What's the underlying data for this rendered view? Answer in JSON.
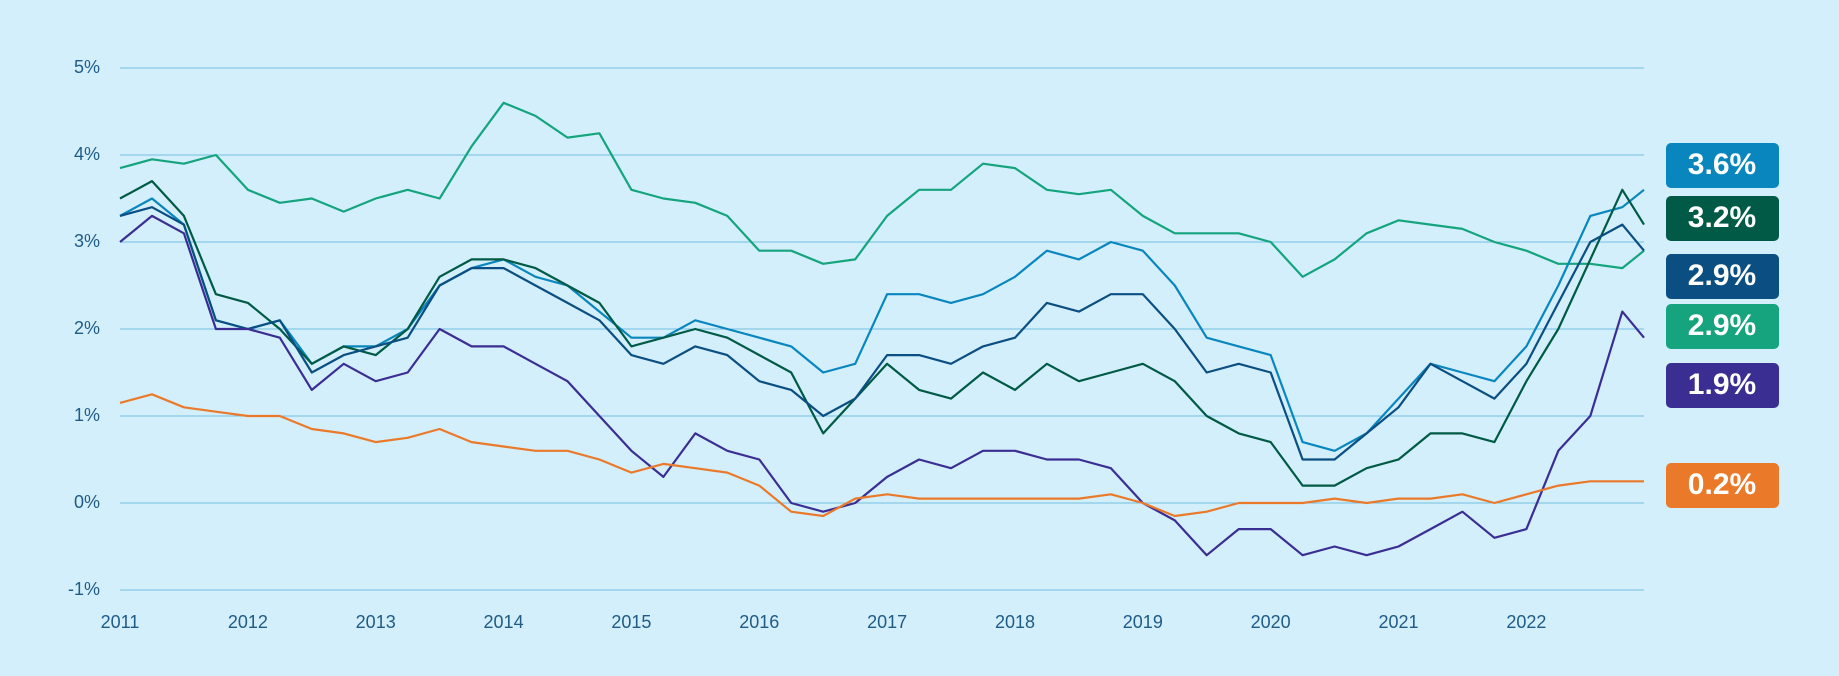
{
  "chart_data": {
    "type": "line",
    "x": [
      2011,
      2011.25,
      2011.5,
      2011.75,
      2012,
      2012.25,
      2012.5,
      2012.75,
      2013,
      2013.25,
      2013.5,
      2013.75,
      2014,
      2014.25,
      2014.5,
      2014.75,
      2015,
      2015.25,
      2015.5,
      2015.75,
      2016,
      2016.25,
      2016.5,
      2016.75,
      2017,
      2017.25,
      2017.5,
      2017.75,
      2018,
      2018.25,
      2018.5,
      2018.75,
      2019,
      2019.25,
      2019.5,
      2019.75,
      2020,
      2020.25,
      2020.5,
      2020.75,
      2021,
      2021.25,
      2021.5,
      2021.75,
      2022,
      2022.25,
      2022.5,
      2022.75,
      2022.92
    ],
    "series": [
      {
        "color": "#15a47e",
        "values": [
          3.85,
          3.95,
          3.9,
          4.0,
          3.6,
          3.45,
          3.5,
          3.35,
          3.5,
          3.6,
          3.5,
          4.1,
          4.6,
          4.45,
          4.2,
          4.25,
          3.6,
          3.5,
          3.45,
          3.3,
          2.9,
          2.9,
          2.75,
          2.8,
          3.3,
          3.6,
          3.6,
          3.9,
          3.85,
          3.6,
          3.55,
          3.6,
          3.3,
          3.1,
          3.1,
          3.1,
          3.0,
          2.6,
          2.8,
          3.1,
          3.25,
          3.2,
          3.15,
          3.0,
          2.9,
          2.75,
          2.75,
          2.7,
          2.9
        ],
        "value_labels": [
          null,
          null,
          null,
          null,
          null,
          null,
          null,
          null,
          null,
          null,
          null,
          null,
          null,
          null,
          null,
          null,
          null,
          null,
          null,
          null,
          null,
          null,
          null,
          null,
          null,
          null,
          null,
          null,
          null,
          null,
          null,
          null,
          null,
          null,
          null,
          null,
          null,
          null,
          null,
          null,
          null,
          null,
          null,
          null,
          null,
          null,
          null,
          null,
          "2.9%"
        ]
      },
      {
        "color": "#0a86be",
        "values": [
          3.3,
          3.5,
          3.2,
          2.1,
          2.0,
          2.1,
          1.6,
          1.8,
          1.8,
          2.0,
          2.5,
          2.7,
          2.8,
          2.6,
          2.5,
          2.2,
          1.9,
          1.9,
          2.1,
          2.0,
          1.9,
          1.8,
          1.5,
          1.6,
          2.4,
          2.4,
          2.3,
          2.4,
          2.6,
          2.9,
          2.8,
          3.0,
          2.9,
          2.5,
          1.9,
          1.8,
          1.7,
          0.7,
          0.6,
          0.8,
          1.2,
          1.6,
          1.5,
          1.4,
          1.8,
          2.5,
          3.3,
          3.4,
          3.6
        ],
        "value_labels": [
          null,
          null,
          null,
          null,
          null,
          null,
          null,
          null,
          null,
          null,
          null,
          null,
          null,
          null,
          null,
          null,
          null,
          null,
          null,
          null,
          null,
          null,
          null,
          null,
          null,
          null,
          null,
          null,
          null,
          null,
          null,
          null,
          null,
          null,
          null,
          null,
          null,
          null,
          null,
          null,
          null,
          null,
          null,
          null,
          null,
          null,
          null,
          null,
          "3.6%"
        ]
      },
      {
        "color": "#005a45",
        "values": [
          3.5,
          3.7,
          3.3,
          2.4,
          2.3,
          2.0,
          1.6,
          1.8,
          1.7,
          2.0,
          2.6,
          2.8,
          2.8,
          2.7,
          2.5,
          2.3,
          1.8,
          1.9,
          2.0,
          1.9,
          1.7,
          1.5,
          0.8,
          1.2,
          1.6,
          1.3,
          1.2,
          1.5,
          1.3,
          1.6,
          1.4,
          1.5,
          1.6,
          1.4,
          1.0,
          0.8,
          0.7,
          0.2,
          0.2,
          0.4,
          0.5,
          0.8,
          0.8,
          0.7,
          1.4,
          2.0,
          2.8,
          3.6,
          3.2
        ],
        "value_labels": [
          null,
          null,
          null,
          null,
          null,
          null,
          null,
          null,
          null,
          null,
          null,
          null,
          null,
          null,
          null,
          null,
          null,
          null,
          null,
          null,
          null,
          null,
          null,
          null,
          null,
          null,
          null,
          null,
          null,
          null,
          null,
          null,
          null,
          null,
          null,
          null,
          null,
          null,
          null,
          null,
          null,
          null,
          null,
          null,
          null,
          null,
          null,
          null,
          "3.2%"
        ]
      },
      {
        "color": "#0b4f82",
        "values": [
          3.3,
          3.4,
          3.2,
          2.1,
          2.0,
          2.1,
          1.5,
          1.7,
          1.8,
          1.9,
          2.5,
          2.7,
          2.7,
          2.5,
          2.3,
          2.1,
          1.7,
          1.6,
          1.8,
          1.7,
          1.4,
          1.3,
          1.0,
          1.2,
          1.7,
          1.7,
          1.6,
          1.8,
          1.9,
          2.3,
          2.2,
          2.4,
          2.4,
          2.0,
          1.5,
          1.6,
          1.5,
          0.5,
          0.5,
          0.8,
          1.1,
          1.6,
          1.4,
          1.2,
          1.6,
          2.3,
          3.0,
          3.2,
          2.9
        ],
        "value_labels": [
          null,
          null,
          null,
          null,
          null,
          null,
          null,
          null,
          null,
          null,
          null,
          null,
          null,
          null,
          null,
          null,
          null,
          null,
          null,
          null,
          null,
          null,
          null,
          null,
          null,
          null,
          null,
          null,
          null,
          null,
          null,
          null,
          null,
          null,
          null,
          null,
          null,
          null,
          null,
          null,
          null,
          null,
          null,
          null,
          null,
          null,
          null,
          null,
          "2.9%"
        ]
      },
      {
        "color": "#3b2e92",
        "values": [
          3.0,
          3.3,
          3.1,
          2.0,
          2.0,
          1.9,
          1.3,
          1.6,
          1.4,
          1.5,
          2.0,
          1.8,
          1.8,
          1.6,
          1.4,
          1.0,
          0.6,
          0.3,
          0.8,
          0.6,
          0.5,
          0.0,
          -0.1,
          0.0,
          0.3,
          0.5,
          0.4,
          0.6,
          0.6,
          0.5,
          0.5,
          0.4,
          0.0,
          -0.2,
          -0.6,
          -0.3,
          -0.3,
          -0.6,
          -0.5,
          -0.6,
          -0.5,
          -0.3,
          -0.1,
          -0.4,
          -0.3,
          0.6,
          1.0,
          2.2,
          1.9
        ],
        "value_labels": [
          null,
          null,
          null,
          null,
          null,
          null,
          null,
          null,
          null,
          null,
          null,
          null,
          null,
          null,
          null,
          null,
          null,
          null,
          null,
          null,
          null,
          null,
          null,
          null,
          null,
          null,
          null,
          null,
          null,
          null,
          null,
          null,
          null,
          null,
          null,
          null,
          null,
          null,
          null,
          null,
          null,
          null,
          null,
          null,
          null,
          null,
          null,
          null,
          "1.9%"
        ]
      },
      {
        "color": "#ea7a2a",
        "values": [
          1.15,
          1.25,
          1.1,
          1.05,
          1.0,
          1.0,
          0.85,
          0.8,
          0.7,
          0.75,
          0.85,
          0.7,
          0.65,
          0.6,
          0.6,
          0.5,
          0.35,
          0.45,
          0.4,
          0.35,
          0.2,
          -0.1,
          -0.15,
          0.05,
          0.1,
          0.05,
          0.05,
          0.05,
          0.05,
          0.05,
          0.05,
          0.1,
          0.0,
          -0.15,
          -0.1,
          0.0,
          0.0,
          0.0,
          0.05,
          0.0,
          0.05,
          0.05,
          0.1,
          0.0,
          0.1,
          0.2,
          0.25,
          0.25,
          0.25
        ],
        "value_labels": [
          null,
          null,
          null,
          null,
          null,
          null,
          null,
          null,
          null,
          null,
          null,
          null,
          null,
          null,
          null,
          null,
          null,
          null,
          null,
          null,
          null,
          null,
          null,
          null,
          null,
          null,
          null,
          null,
          null,
          null,
          null,
          null,
          null,
          null,
          null,
          null,
          null,
          null,
          null,
          null,
          null,
          null,
          null,
          null,
          null,
          null,
          null,
          null,
          "0.2%"
        ]
      }
    ],
    "xlim": [
      2011,
      2022.92
    ],
    "xticks": [
      2011,
      2012,
      2013,
      2014,
      2015,
      2016,
      2017,
      2018,
      2019,
      2020,
      2021,
      2022
    ],
    "ylim": [
      -1,
      5
    ],
    "yticks": [
      {
        "value": -1,
        "label": "-1%"
      },
      {
        "value": 0,
        "label": "0%"
      },
      {
        "value": 1,
        "label": "1%"
      },
      {
        "value": 2,
        "label": "2%"
      },
      {
        "value": 3,
        "label": "3%"
      },
      {
        "value": 4,
        "label": "4%"
      },
      {
        "value": 5,
        "label": "5%"
      }
    ],
    "grid": true
  }
}
